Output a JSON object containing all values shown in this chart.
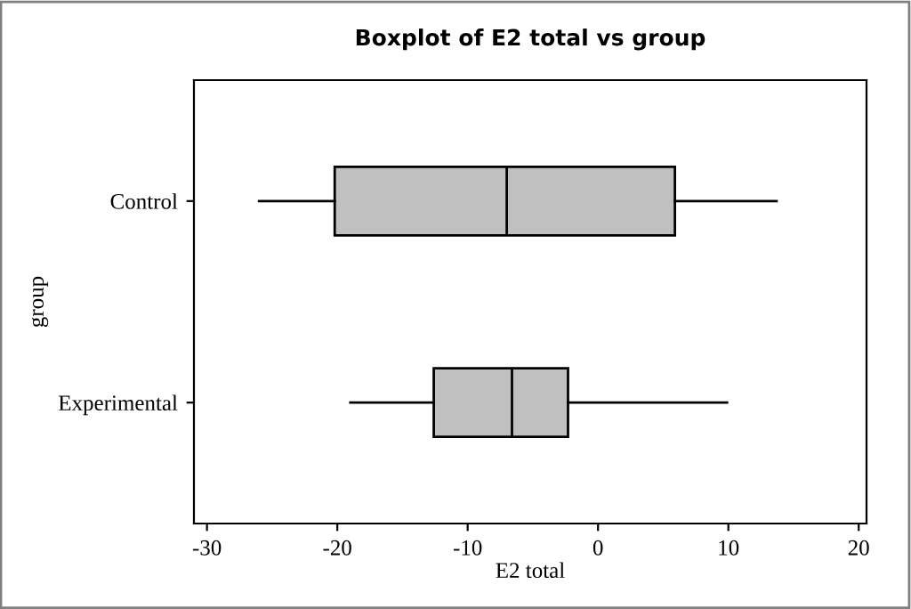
{
  "chart_data": {
    "type": "box",
    "orientation": "horizontal",
    "title": "Boxplot of E2 total vs group",
    "xlabel": "E2 total",
    "ylabel": "group",
    "categories": [
      "Control",
      "Experimental"
    ],
    "series": [
      {
        "color": "#c0c0c0",
        "boxes": [
          {
            "low": -26.0,
            "q1": -20.2,
            "median": -7.0,
            "q3": 5.9,
            "high": 13.7
          },
          {
            "low": -19.0,
            "q1": -12.6,
            "median": -6.6,
            "q3": -2.3,
            "high": 9.9
          }
        ]
      }
    ],
    "xlim": [
      -31,
      20.6
    ],
    "xticks": [
      -30,
      -20,
      -10,
      0,
      10,
      20
    ],
    "grid": false
  }
}
